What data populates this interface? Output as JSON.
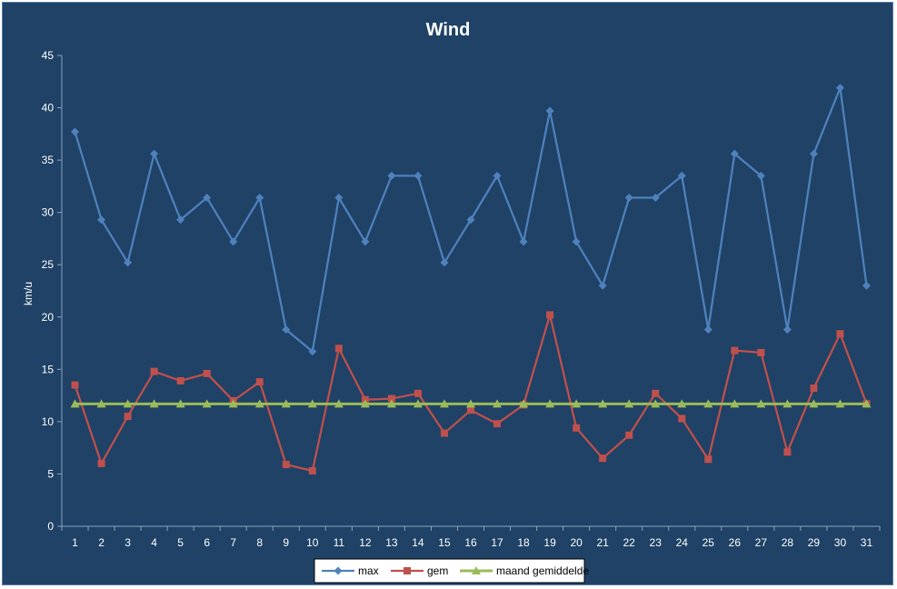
{
  "chart_data": {
    "type": "line",
    "title": "Wind",
    "xlabel": "",
    "ylabel": "km/u",
    "ylim": [
      0,
      45
    ],
    "yticks": [
      0,
      5,
      10,
      15,
      20,
      25,
      30,
      35,
      40,
      45
    ],
    "categories": [
      "1",
      "2",
      "3",
      "4",
      "5",
      "6",
      "7",
      "8",
      "9",
      "10",
      "11",
      "12",
      "13",
      "14",
      "15",
      "16",
      "17",
      "18",
      "19",
      "20",
      "21",
      "22",
      "23",
      "24",
      "25",
      "26",
      "27",
      "28",
      "29",
      "30",
      "31"
    ],
    "grid": false,
    "legend_position": "bottom",
    "series": [
      {
        "name": "max",
        "color": "#4f81bd",
        "marker": "diamond",
        "values": [
          37.7,
          29.3,
          25.2,
          35.6,
          29.3,
          31.4,
          27.2,
          31.4,
          18.8,
          16.7,
          31.4,
          27.2,
          33.5,
          33.5,
          25.2,
          29.3,
          33.5,
          27.2,
          39.7,
          27.2,
          23.0,
          31.4,
          31.4,
          33.5,
          18.8,
          35.6,
          33.5,
          18.8,
          35.6,
          41.9,
          23.0
        ]
      },
      {
        "name": "gem",
        "color": "#c0504d",
        "marker": "square",
        "values": [
          13.5,
          6.0,
          10.5,
          14.8,
          13.9,
          14.6,
          12.0,
          13.8,
          5.9,
          5.3,
          17.0,
          12.1,
          12.2,
          12.7,
          8.9,
          11.1,
          9.8,
          11.6,
          20.2,
          9.4,
          6.5,
          8.7,
          12.7,
          10.3,
          6.4,
          16.8,
          16.6,
          7.1,
          13.2,
          18.4,
          11.7
        ]
      },
      {
        "name": "maand gemiddelde",
        "color": "#9bbb59",
        "marker": "triangle",
        "values": [
          11.7,
          11.7,
          11.7,
          11.7,
          11.7,
          11.7,
          11.7,
          11.7,
          11.7,
          11.7,
          11.7,
          11.7,
          11.7,
          11.7,
          11.7,
          11.7,
          11.7,
          11.7,
          11.7,
          11.7,
          11.7,
          11.7,
          11.7,
          11.7,
          11.7,
          11.7,
          11.7,
          11.7,
          11.7,
          11.7,
          11.7
        ]
      }
    ]
  }
}
